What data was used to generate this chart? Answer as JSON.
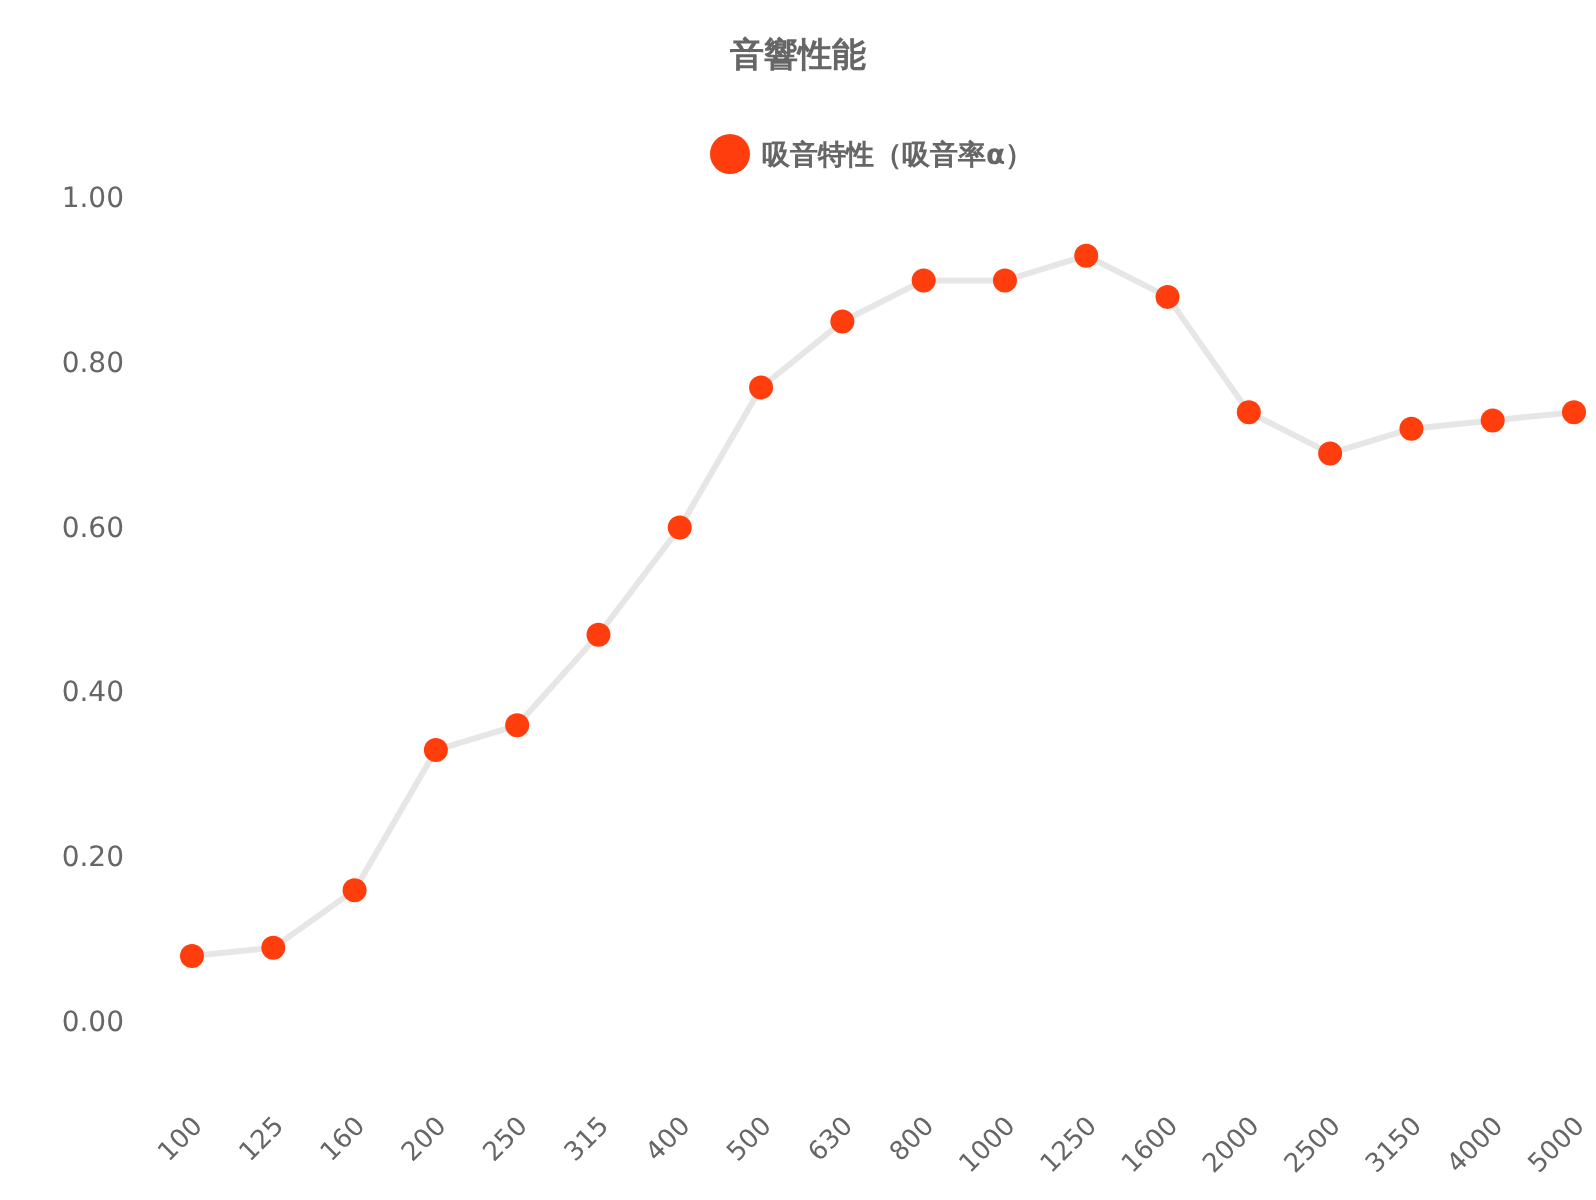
{
  "chart_data": {
    "type": "line",
    "title": "音響性能",
    "categories": [
      "100",
      "125",
      "160",
      "200",
      "250",
      "315",
      "400",
      "500",
      "630",
      "800",
      "1000",
      "1250",
      "1600",
      "2000",
      "2500",
      "3150",
      "4000",
      "5000"
    ],
    "series": [
      {
        "name": "吸音特性（吸音率α）",
        "color": "#ff3d0d",
        "values": [
          0.08,
          0.09,
          0.16,
          0.33,
          0.36,
          0.47,
          0.6,
          0.77,
          0.85,
          0.9,
          0.9,
          0.93,
          0.88,
          0.74,
          0.69,
          0.72,
          0.73,
          0.74
        ]
      }
    ],
    "ylim": [
      0,
      1
    ],
    "yticks": [
      {
        "value": 0,
        "label": "0.00"
      },
      {
        "value": 0.2,
        "label": "0.20"
      },
      {
        "value": 0.4,
        "label": "0.40"
      },
      {
        "value": 0.6,
        "label": "0.60"
      },
      {
        "value": 0.8,
        "label": "0.80"
      },
      {
        "value": 1,
        "label": "1.00"
      }
    ],
    "legend": "top",
    "marker": "circle",
    "grid": false
  }
}
